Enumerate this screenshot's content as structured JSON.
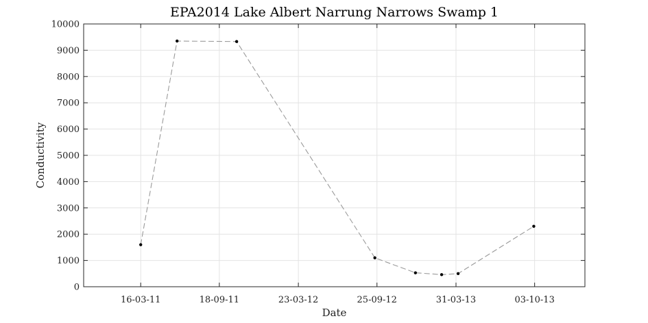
{
  "chart_data": {
    "type": "line",
    "title": "EPA2014 Lake Albert Narrung Narrows Swamp 1",
    "xlabel": "Date",
    "ylabel": "Conductivity",
    "ylim": [
      0,
      10000
    ],
    "yticks": [
      0,
      1000,
      2000,
      3000,
      4000,
      5000,
      6000,
      7000,
      8000,
      9000,
      10000
    ],
    "xlim": [
      "2010-11-01",
      "2014-01-30"
    ],
    "xticks": [
      "2011-03-16",
      "2011-09-18",
      "2012-03-23",
      "2012-09-25",
      "2013-03-31",
      "2013-10-03"
    ],
    "xtick_labels": [
      "16-03-11",
      "18-09-11",
      "23-03-12",
      "25-09-12",
      "31-03-13",
      "03-10-13"
    ],
    "grid": true,
    "line_style": "dashed",
    "line_color": "#9a9a9a",
    "marker_color": "#000000",
    "series": [
      {
        "x": [
          "2011-03-16",
          "2011-06-10",
          "2011-10-29",
          "2012-09-20",
          "2012-12-25",
          "2013-02-25",
          "2013-04-05",
          "2013-10-01"
        ],
        "y": [
          1600,
          9350,
          9330,
          1100,
          530,
          460,
          500,
          2300
        ]
      }
    ]
  }
}
